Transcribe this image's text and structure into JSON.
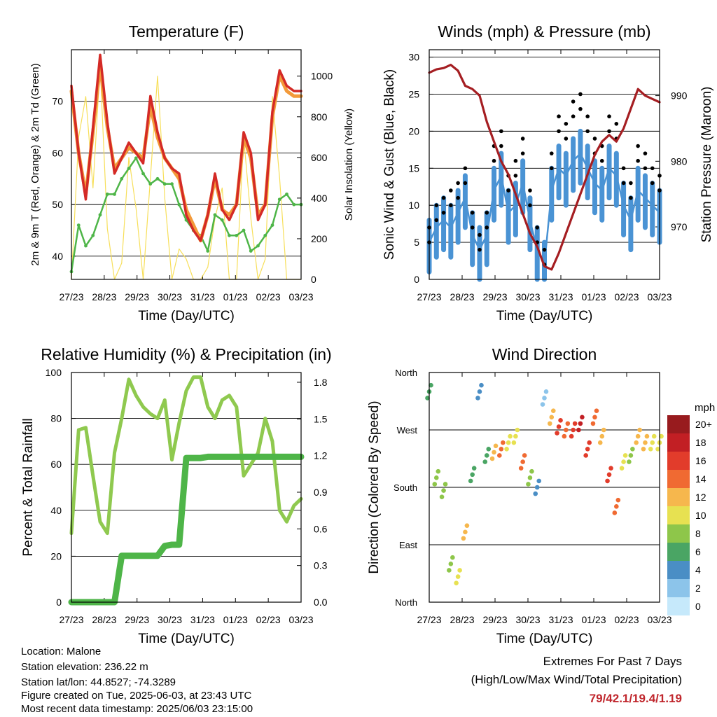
{
  "panels": {
    "temperature": {
      "title": "Temperature (F)",
      "ylabel_left": "2m & 9m T (Red, Orange) & 2m Td (Green)",
      "ylabel_right": "Solar Insolation (Yellow)",
      "xlabel": "Time (Day/UTC)",
      "left_ticks": [
        "40",
        "50",
        "60",
        "70"
      ],
      "right_ticks": [
        "0",
        "200",
        "400",
        "600",
        "800",
        "1000"
      ]
    },
    "winds": {
      "title": "Winds (mph) & Pressure (mb)",
      "ylabel_left": "Sonic Wind & Gust (Blue, Black)",
      "ylabel_right": "Station Pressure (Maroon)",
      "xlabel": "Time (Day/UTC)",
      "left_ticks": [
        "0",
        "5",
        "10",
        "15",
        "20",
        "25",
        "30"
      ],
      "right_ticks": [
        "970",
        "980",
        "990"
      ]
    },
    "humidity": {
      "title": "Relative Humidity (%) & Precipitation (in)",
      "ylabel_left": "Percent & Total Rainfall",
      "xlabel": "Time (Day/UTC)",
      "left_ticks": [
        "0",
        "20",
        "40",
        "60",
        "80",
        "100"
      ],
      "right_ticks": [
        "0.0",
        "0.3",
        "0.6",
        "0.9",
        "1.2",
        "1.5",
        "1.8"
      ]
    },
    "direction": {
      "title": "Wind Direction",
      "ylabel_left": "Direction (Colored By Speed)",
      "xlabel": "Time (Day/UTC)",
      "left_ticks": [
        "North",
        "East",
        "South",
        "West",
        "North"
      ]
    }
  },
  "x_ticks": [
    "27/23",
    "28/23",
    "29/23",
    "30/23",
    "31/23",
    "01/23",
    "02/23",
    "03/23"
  ],
  "colorbar": {
    "unit": "mph",
    "labels": [
      "0",
      "2",
      "4",
      "6",
      "8",
      "10",
      "12",
      "14",
      "16",
      "18",
      "20+"
    ],
    "colors": [
      "#c6e9fb",
      "#8cc4ea",
      "#4a8ec5",
      "#4aa564",
      "#8ec64a",
      "#e7e151",
      "#f6b74d",
      "#f06a32",
      "#e23c2b",
      "#c21f24",
      "#981b1e"
    ]
  },
  "info": {
    "location": "Location: Malone",
    "elevation": "Station elevation: 236.22 m",
    "latlon": "Station lat/lon: 44.8527; -74.3289",
    "created": "Figure created on Tue, 2025-06-03, at 23:43 UTC",
    "recent": "Most recent data timestamp: 2025/06/03 23:15:00"
  },
  "extremes": {
    "line1": "Extremes For Past 7 Days",
    "line2": "(High/Low/Max Wind/Total Precipitation)",
    "values": "79/42.1/19.4/1.19"
  },
  "colors": {
    "temp2m": "#d42a26",
    "temp9m": "#f39a3a",
    "dewpoint": "#4eb548",
    "solar": "#f7df5a",
    "wind": "#4a93d4",
    "gust": "#000000",
    "pressure": "#a51e22",
    "rh": "#8fc94f",
    "precip": "#4eb548"
  },
  "chart_data": [
    {
      "type": "line",
      "title": "Temperature (F)",
      "xlabel": "Time (Day/UTC)",
      "ylabel": "2m & 9m T (Red, Orange) & 2m Td (Green)",
      "ylabel_right": "Solar Insolation (Yellow)",
      "x": [
        "27/23",
        "27/06",
        "27/12",
        "27/18",
        "28/00",
        "28/06",
        "28/12",
        "28/18",
        "29/00",
        "29/06",
        "29/12",
        "29/18",
        "30/00",
        "30/06",
        "30/12",
        "30/18",
        "31/00",
        "31/06",
        "31/12",
        "31/18",
        "01/00",
        "01/06",
        "01/12",
        "01/18",
        "02/00",
        "02/06",
        "02/12",
        "02/18",
        "03/00",
        "03/06",
        "03/12",
        "03/18",
        "03/23"
      ],
      "ylim": [
        35.5,
        80
      ],
      "ylim_right": [
        0,
        1130
      ],
      "series": [
        {
          "name": "2m T",
          "axis": "left",
          "values": [
            73,
            60,
            51,
            65,
            79,
            66,
            56,
            59,
            62,
            60,
            58,
            71,
            64,
            59,
            57,
            56,
            48,
            45,
            43,
            48,
            56,
            49,
            47,
            50,
            64,
            60,
            47,
            50,
            68,
            76,
            73,
            72,
            72
          ]
        },
        {
          "name": "9m T",
          "axis": "left",
          "values": [
            72,
            60,
            52,
            64,
            77,
            65,
            57,
            59,
            61,
            60,
            59,
            69,
            63,
            59,
            57,
            55,
            49,
            46,
            43,
            48,
            55,
            49,
            48,
            50,
            63,
            59,
            48,
            50,
            67,
            75,
            72,
            71,
            71
          ]
        },
        {
          "name": "2m Td",
          "axis": "left",
          "values": [
            37,
            46,
            42,
            44,
            48,
            52,
            52,
            55,
            57,
            59,
            56,
            54,
            55,
            54,
            54,
            50,
            47,
            45,
            44,
            41,
            48,
            47,
            44,
            44,
            45,
            41,
            42,
            44,
            46,
            51,
            52,
            50,
            50
          ]
        },
        {
          "name": "Solar",
          "axis": "right",
          "values": [
            0,
            700,
            900,
            450,
            1050,
            250,
            0,
            80,
            600,
            350,
            0,
            500,
            1000,
            400,
            0,
            150,
            100,
            0,
            0,
            60,
            300,
            450,
            0,
            0,
            700,
            300,
            0,
            100,
            900,
            500,
            0,
            0,
            0
          ]
        }
      ]
    },
    {
      "type": "line",
      "title": "Winds (mph) & Pressure (mb)",
      "xlabel": "Time (Day/UTC)",
      "ylabel": "Sonic Wind & Gust (Blue, Black)",
      "ylabel_right": "Station Pressure (Maroon)",
      "x": [
        "27/23",
        "27/06",
        "27/12",
        "27/18",
        "28/00",
        "28/06",
        "28/12",
        "28/18",
        "29/00",
        "29/06",
        "29/12",
        "29/18",
        "30/00",
        "30/06",
        "30/12",
        "30/18",
        "31/00",
        "31/06",
        "31/12",
        "31/18",
        "01/00",
        "01/06",
        "01/12",
        "01/18",
        "02/00",
        "02/06",
        "02/12",
        "02/18",
        "03/00",
        "03/06",
        "03/12",
        "03/18",
        "03/23"
      ],
      "ylim": [
        0,
        31
      ],
      "ylim_right": [
        962,
        997
      ],
      "series": [
        {
          "name": "Wind",
          "axis": "left",
          "values": [
            5,
            7,
            8,
            7,
            9,
            11,
            6,
            4,
            6,
            12,
            14,
            9,
            10,
            13,
            8,
            4,
            2,
            12,
            15,
            14,
            16,
            17,
            15,
            13,
            12,
            15,
            14,
            10,
            8,
            12,
            11,
            10,
            9
          ]
        },
        {
          "name": "Gust",
          "axis": "left",
          "values": [
            7,
            10,
            11,
            12,
            13,
            15,
            9,
            6,
            9,
            18,
            20,
            14,
            16,
            19,
            12,
            7,
            4,
            17,
            22,
            21,
            24,
            25,
            22,
            19,
            18,
            22,
            21,
            15,
            13,
            18,
            17,
            15,
            14
          ]
        },
        {
          "name": "Pressure",
          "axis": "right",
          "values": [
            993.5,
            994,
            994.2,
            994.7,
            993.8,
            991.5,
            991,
            990,
            986,
            983,
            980,
            978,
            975,
            972,
            969,
            967,
            964,
            963.5,
            966,
            969,
            972,
            975,
            978,
            981,
            983,
            984,
            983,
            985,
            988,
            991,
            990,
            989.5,
            989
          ]
        }
      ]
    },
    {
      "type": "line",
      "title": "Relative Humidity (%) & Precipitation (in)",
      "xlabel": "Time (Day/UTC)",
      "ylabel": "Percent & Total Rainfall",
      "x": [
        "27/23",
        "27/06",
        "27/12",
        "27/18",
        "28/00",
        "28/06",
        "28/12",
        "28/18",
        "29/00",
        "29/06",
        "29/12",
        "29/18",
        "30/00",
        "30/06",
        "30/12",
        "30/18",
        "31/00",
        "31/06",
        "31/12",
        "31/18",
        "01/00",
        "01/06",
        "01/12",
        "01/18",
        "02/00",
        "02/06",
        "02/12",
        "02/18",
        "03/00",
        "03/06",
        "03/12",
        "03/18",
        "03/23"
      ],
      "ylim": [
        0,
        100
      ],
      "ylim_right": [
        0,
        1.88
      ],
      "series": [
        {
          "name": "RH",
          "axis": "left",
          "values": [
            30,
            75,
            76,
            55,
            35,
            30,
            65,
            80,
            97,
            90,
            85,
            82,
            80,
            88,
            62,
            78,
            92,
            98,
            98,
            85,
            80,
            88,
            90,
            85,
            55,
            60,
            65,
            80,
            70,
            40,
            35,
            42,
            45
          ]
        },
        {
          "name": "Precip",
          "axis": "right",
          "values": [
            0,
            0,
            0,
            0,
            0,
            0,
            0,
            0.38,
            0.38,
            0.38,
            0.38,
            0.38,
            0.38,
            0.46,
            0.47,
            0.47,
            1.18,
            1.18,
            1.18,
            1.19,
            1.19,
            1.19,
            1.19,
            1.19,
            1.19,
            1.19,
            1.19,
            1.19,
            1.19,
            1.19,
            1.19,
            1.19,
            1.19
          ]
        }
      ]
    },
    {
      "type": "scatter",
      "title": "Wind Direction",
      "xlabel": "Time (Day/UTC)",
      "ylabel": "Direction (Colored By Speed)",
      "x": [
        "27/23",
        "27/06",
        "27/12",
        "27/18",
        "28/00",
        "28/06",
        "28/12",
        "28/18",
        "29/00",
        "29/06",
        "29/12",
        "29/18",
        "30/00",
        "30/06",
        "30/12",
        "30/18",
        "31/00",
        "31/06",
        "31/12",
        "31/18",
        "01/00",
        "01/06",
        "01/12",
        "01/18",
        "02/00",
        "02/06",
        "02/12",
        "02/18",
        "03/00",
        "03/06",
        "03/12",
        "03/18",
        "03/23"
      ],
      "ylim": [
        0,
        360
      ],
      "series": [
        {
          "name": "Direction",
          "values": [
            330,
            195,
            175,
            60,
            40,
            110,
            200,
            330,
            230,
            235,
            240,
            250,
            260,
            220,
            195,
            180,
            320,
            290,
            275,
            270,
            270,
            280,
            240,
            290,
            260,
            200,
            150,
            220,
            230,
            260,
            250,
            250,
            250
          ]
        },
        {
          "name": "Speed",
          "values": [
            5,
            7,
            8,
            7,
            9,
            11,
            6,
            4,
            6,
            12,
            14,
            9,
            10,
            13,
            8,
            4,
            2,
            12,
            15,
            14,
            16,
            17,
            15,
            13,
            12,
            15,
            14,
            10,
            8,
            12,
            11,
            10,
            9
          ]
        }
      ]
    }
  ]
}
